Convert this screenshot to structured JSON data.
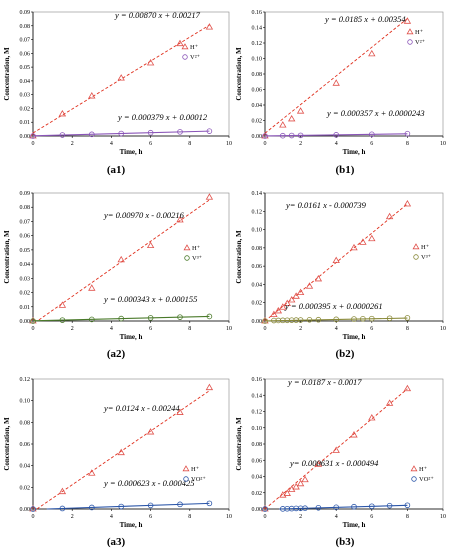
{
  "chart_data": [
    {
      "type": "scatter",
      "caption": "(a1)",
      "xlabel": "Time, h",
      "ylabel": "Concentration, M",
      "xlim": [
        0,
        10
      ],
      "ylim": [
        0,
        0.09
      ],
      "xticks": [
        "0",
        "2",
        "4",
        "6",
        "8",
        "10"
      ],
      "yticks": [
        "0.00",
        "0.01",
        "0.02",
        "0.03",
        "0.04",
        "0.05",
        "0.06",
        "0.07",
        "0.08",
        "0.09"
      ],
      "series": [
        {
          "name": "H⁺",
          "marker": "triangle",
          "color": "#e0504a",
          "x": [
            0,
            1.5,
            3,
            4.5,
            6,
            7.5,
            9
          ],
          "y": [
            0,
            0.016,
            0.029,
            0.042,
            0.053,
            0.067,
            0.079
          ],
          "fit": {
            "label": "y = 0.00870 x + 0.00217",
            "slope": 0.0087,
            "intercept": 0.00217,
            "x0": 0,
            "x1": 9
          }
        },
        {
          "name": "V²⁺",
          "marker": "circle",
          "color": "#8a55b8",
          "x": [
            0,
            1.5,
            3,
            4.5,
            6,
            7.5,
            9
          ],
          "y": [
            0,
            0.0007,
            0.0012,
            0.0018,
            0.0024,
            0.003,
            0.0035
          ],
          "fit": {
            "label": "y = 0.000379 x + 0.00012",
            "slope": 0.000379,
            "intercept": 0.00012,
            "x0": 0,
            "x1": 9
          }
        }
      ]
    },
    {
      "type": "scatter",
      "caption": "(b1)",
      "xlabel": "Time, h",
      "ylabel": "Concentration, M",
      "xlim": [
        0,
        10
      ],
      "ylim": [
        0,
        0.16
      ],
      "xticks": [
        "0",
        "2",
        "4",
        "6",
        "8",
        "10"
      ],
      "yticks": [
        "0.00",
        "0.02",
        "0.04",
        "0.06",
        "0.08",
        "0.10",
        "0.12",
        "0.14",
        "0.16"
      ],
      "series": [
        {
          "name": "H⁺",
          "marker": "triangle",
          "color": "#e0504a",
          "x": [
            0,
            1,
            1.5,
            2,
            4,
            6,
            8
          ],
          "y": [
            0,
            0.014,
            0.022,
            0.032,
            0.068,
            0.106,
            0.148
          ],
          "fit": {
            "label": "y = 0.0185 x + 0.00354",
            "slope": 0.0185,
            "intercept": 0.00354,
            "x0": 0,
            "x1": 8
          }
        },
        {
          "name": "V²⁺",
          "marker": "circle",
          "color": "#8a55b8",
          "x": [
            0,
            1,
            1.5,
            2,
            4,
            6,
            8
          ],
          "y": [
            0,
            0.0004,
            0.0006,
            0.0008,
            0.0015,
            0.0022,
            0.003
          ],
          "fit": {
            "label": "y = 0.000357 x + 0.0000243",
            "slope": 0.000357,
            "intercept": 2.43e-05,
            "x0": 0,
            "x1": 8
          }
        }
      ]
    },
    {
      "type": "scatter",
      "caption": "(a2)",
      "xlabel": "Time, h",
      "ylabel": "Concentration, M",
      "xlim": [
        0,
        10
      ],
      "ylim": [
        0,
        0.09
      ],
      "xticks": [
        "0",
        "2",
        "4",
        "6",
        "8",
        "10"
      ],
      "yticks": [
        "0.00",
        "0.01",
        "0.02",
        "0.03",
        "0.04",
        "0.05",
        "0.06",
        "0.07",
        "0.08",
        "0.09"
      ],
      "series": [
        {
          "name": "H⁺",
          "marker": "triangle",
          "color": "#e0504a",
          "x": [
            0,
            1.5,
            3,
            4.5,
            6,
            7.5,
            9
          ],
          "y": [
            0,
            0.011,
            0.023,
            0.043,
            0.053,
            0.071,
            0.087
          ],
          "fit": {
            "label": "y= 0.00970 x - 0.00216",
            "slope": 0.0097,
            "intercept": -0.00216,
            "x0": 0.3,
            "x1": 9
          }
        },
        {
          "name": "V³⁺",
          "marker": "circle",
          "color": "#4a7a2a",
          "x": [
            0,
            1.5,
            3,
            4.5,
            6,
            7.5,
            9
          ],
          "y": [
            0,
            0.0006,
            0.0011,
            0.0017,
            0.0022,
            0.0027,
            0.0032
          ],
          "fit": {
            "label": "y = 0.000343 x + 0.000155",
            "slope": 0.000343,
            "intercept": 0.000155,
            "x0": 0,
            "x1": 9
          }
        }
      ]
    },
    {
      "type": "scatter",
      "caption": "(b2)",
      "xlabel": "Time, h",
      "ylabel": "Concentration, M",
      "xlim": [
        0,
        10
      ],
      "ylim": [
        0,
        0.14
      ],
      "xticks": [
        "0",
        "2",
        "4",
        "6",
        "8",
        "10"
      ],
      "yticks": [
        "0.00",
        "0.02",
        "0.04",
        "0.06",
        "0.08",
        "0.10",
        "0.12",
        "0.14"
      ],
      "series": [
        {
          "name": "H⁺",
          "marker": "triangle",
          "color": "#e0504a",
          "x": [
            0,
            0.5,
            0.75,
            1,
            1.25,
            1.5,
            1.75,
            2,
            2.5,
            3,
            4,
            5,
            5.5,
            6,
            7,
            8
          ],
          "y": [
            0,
            0.007,
            0.011,
            0.015,
            0.019,
            0.023,
            0.027,
            0.031,
            0.038,
            0.046,
            0.066,
            0.08,
            0.086,
            0.09,
            0.114,
            0.128
          ],
          "fit": {
            "label": "y= 0.0161 x - 0.000739",
            "slope": 0.0161,
            "intercept": -0.000739,
            "x0": 0,
            "x1": 8
          }
        },
        {
          "name": "V³⁺",
          "marker": "circle",
          "color": "#8a8a3a",
          "x": [
            0,
            0.5,
            0.75,
            1,
            1.25,
            1.5,
            1.75,
            2,
            2.5,
            3,
            4,
            5,
            5.5,
            6,
            7,
            8
          ],
          "y": [
            0,
            0.0005,
            0.0006,
            0.0007,
            0.0008,
            0.0009,
            0.001,
            0.0011,
            0.0013,
            0.0014,
            0.0018,
            0.0022,
            0.0024,
            0.0026,
            0.003,
            0.0034
          ],
          "fit": {
            "label": "y = 0.000395 x + 0.0000261",
            "slope": 0.000395,
            "intercept": 2.61e-05,
            "x0": 0,
            "x1": 8
          }
        }
      ]
    },
    {
      "type": "scatter",
      "caption": "(a3)",
      "xlabel": "Time, h",
      "ylabel": "Concentration, M",
      "xlim": [
        0,
        10
      ],
      "ylim": [
        0,
        0.12
      ],
      "xticks": [
        "0",
        "2",
        "4",
        "6",
        "8",
        "10"
      ],
      "yticks": [
        "0.00",
        "0.02",
        "0.04",
        "0.06",
        "0.08",
        "0.10",
        "0.12"
      ],
      "series": [
        {
          "name": "H⁺",
          "marker": "triangle",
          "color": "#e0504a",
          "x": [
            0,
            1.5,
            3,
            4.5,
            6,
            7.5,
            9
          ],
          "y": [
            0,
            0.016,
            0.033,
            0.052,
            0.071,
            0.089,
            0.112
          ],
          "fit": {
            "label": "y= 0.0124 x - 0.00244",
            "slope": 0.0124,
            "intercept": -0.00244,
            "x0": 0.2,
            "x1": 9
          }
        },
        {
          "name": "VO²⁺",
          "marker": "circle",
          "color": "#2a55a8",
          "x": [
            0,
            1.5,
            3,
            4.5,
            6,
            7.5,
            9
          ],
          "y": [
            0,
            0.0005,
            0.0014,
            0.0023,
            0.0033,
            0.0043,
            0.0052
          ],
          "fit": {
            "label": "y = 0.000623 x - 0.000425",
            "slope": 0.000623,
            "intercept": -0.000425,
            "x0": 0.7,
            "x1": 9
          }
        }
      ]
    },
    {
      "type": "scatter",
      "caption": "(b3)",
      "xlabel": "Time, h",
      "ylabel": "Concentration, M",
      "xlim": [
        0,
        10
      ],
      "ylim": [
        0,
        0.16
      ],
      "xticks": [
        "0",
        "2",
        "4",
        "6",
        "8",
        "10"
      ],
      "yticks": [
        "0.00",
        "0.02",
        "0.04",
        "0.06",
        "0.08",
        "0.10",
        "0.12",
        "0.14",
        "0.16"
      ],
      "series": [
        {
          "name": "H⁺",
          "marker": "triangle",
          "color": "#e0504a",
          "x": [
            0,
            1,
            1.25,
            1.5,
            1.75,
            2,
            2.25,
            3,
            4,
            5,
            6,
            7,
            8
          ],
          "y": [
            0,
            0.017,
            0.019,
            0.024,
            0.027,
            0.031,
            0.036,
            0.055,
            0.072,
            0.091,
            0.112,
            0.13,
            0.148
          ],
          "fit": {
            "label": "y = 0.0187 x - 0.0017",
            "slope": 0.0187,
            "intercept": -0.0017,
            "x0": 0,
            "x1": 8
          }
        },
        {
          "name": "VO²⁺",
          "marker": "circle",
          "color": "#2a55a8",
          "x": [
            0,
            1,
            1.25,
            1.5,
            1.75,
            2,
            2.25,
            3,
            4,
            5,
            6,
            7,
            8
          ],
          "y": [
            0,
            0.0002,
            0.0003,
            0.0005,
            0.0007,
            0.0009,
            0.001,
            0.0015,
            0.0021,
            0.0028,
            0.0034,
            0.0041,
            0.0046
          ],
          "fit": {
            "label": "y= 0.000631 x - 0.000494",
            "slope": 0.000631,
            "intercept": -0.000494,
            "x0": 0.8,
            "x1": 8
          }
        }
      ]
    }
  ]
}
